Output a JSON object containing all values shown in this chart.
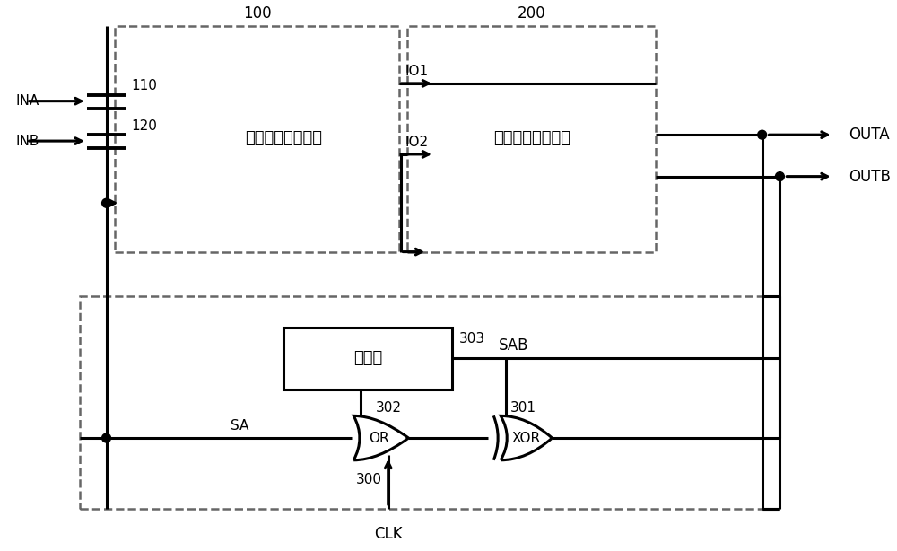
{
  "bg_color": "#ffffff",
  "box1_label": "第一级灵敏放大器",
  "box2_label": "第二级灵敏放大器",
  "delay_label": "延时链",
  "label_100": "100",
  "label_200": "200",
  "label_110": "110",
  "label_120": "120",
  "label_300": "300",
  "label_301": "301",
  "label_302": "302",
  "label_303": "303",
  "label_INA": "INA",
  "label_INB": "INB",
  "label_IO1": "IO1",
  "label_IO2": "IO2",
  "label_OUTA": "OUTA",
  "label_OUTB": "OUTB",
  "label_CLK": "CLK",
  "label_SA": "SA",
  "label_SAB": "SAB",
  "label_OR": "OR",
  "label_XOR": "XOR"
}
